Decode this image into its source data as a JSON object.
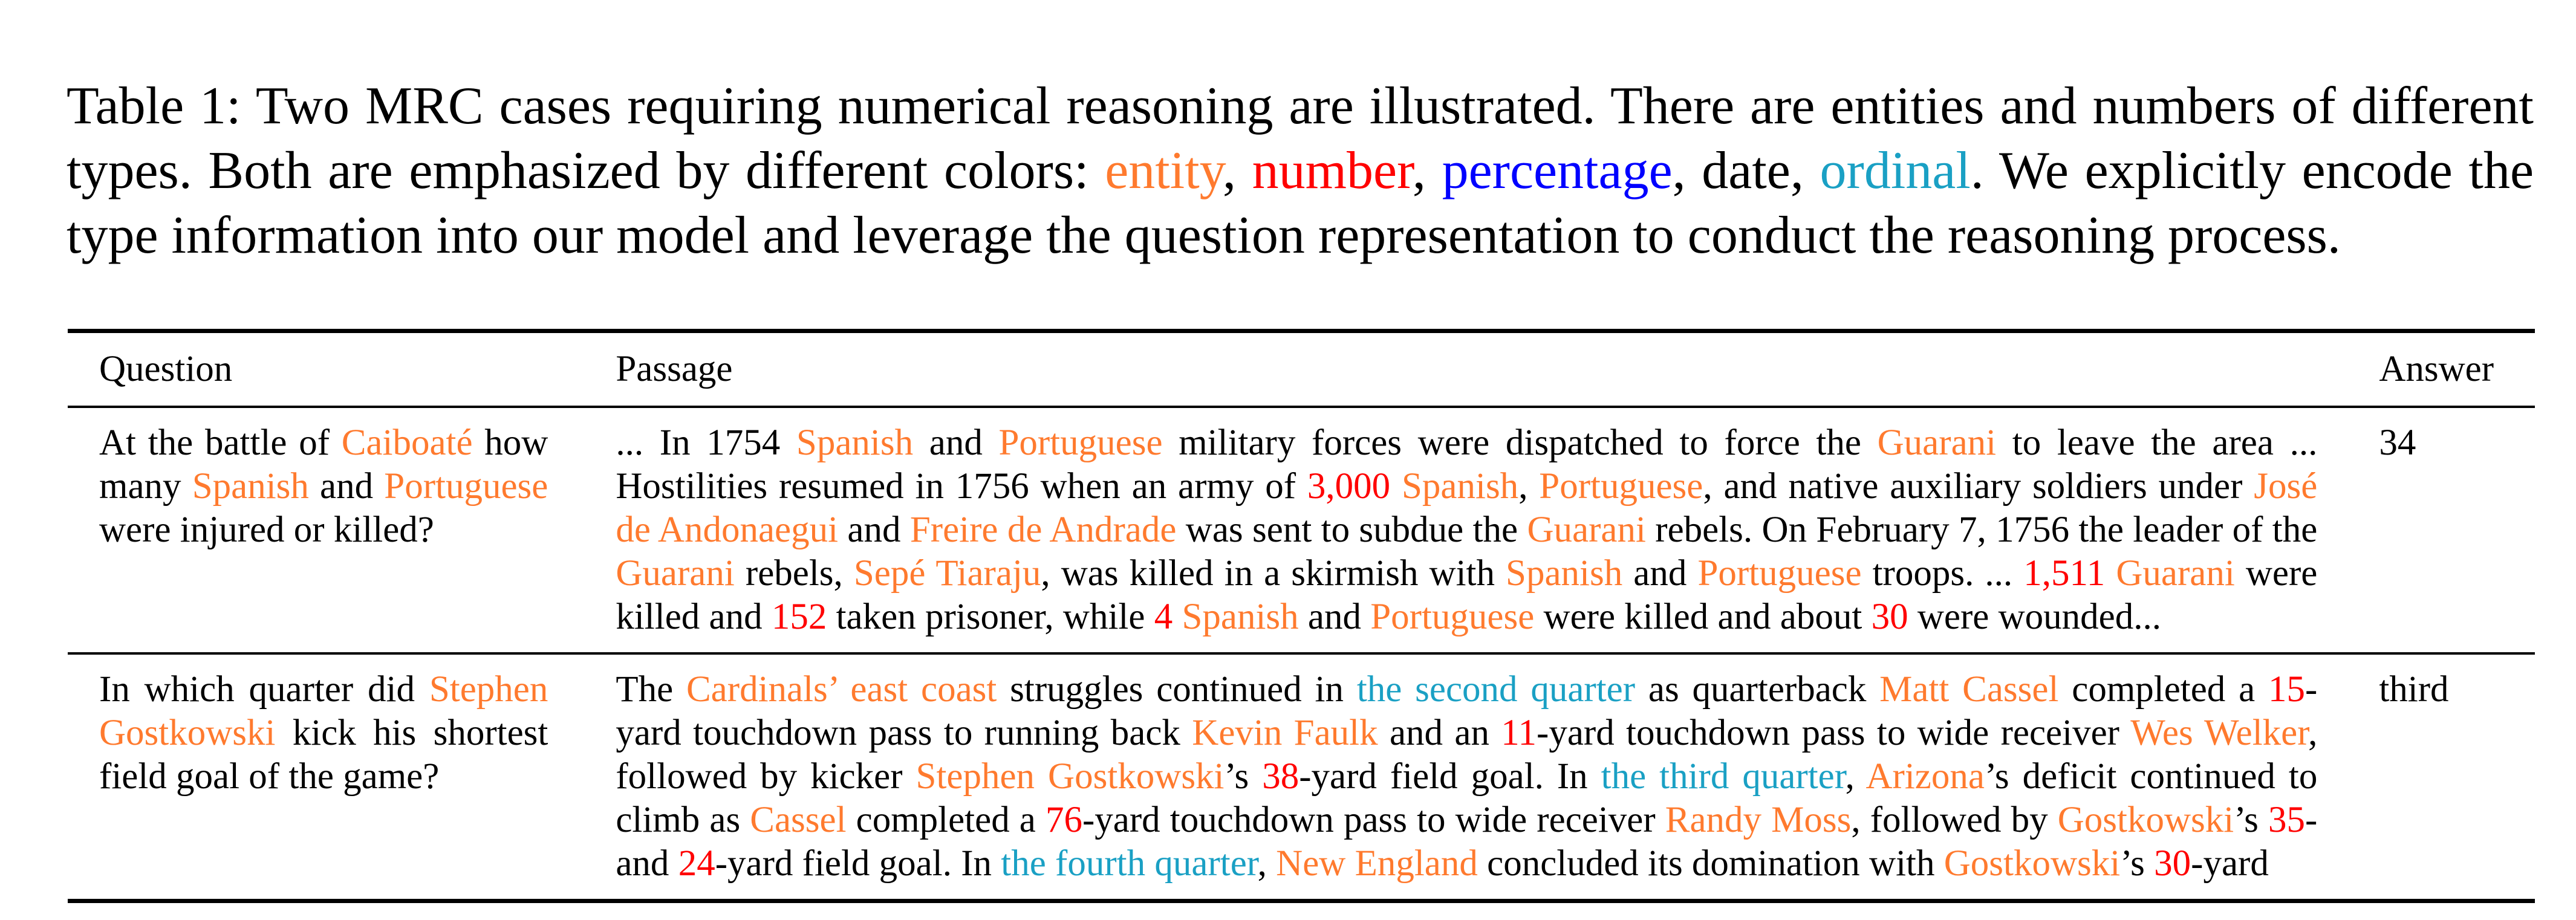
{
  "caption": {
    "prefix": "Table 1: Two MRC cases requiring numerical reasoning are illustrated. There are entities and numbers of different types. Both are emphasized by different colors: ",
    "legend_entity": "entity",
    "sep1": ", ",
    "legend_number": "number",
    "sep2": ", ",
    "legend_percentage": "percentage",
    "sep3": ", date, ",
    "legend_ordinal": "ordinal",
    "suffix": ". We explicitly encode the type information into our model and leverage the question representation to conduct the reasoning process."
  },
  "colors": {
    "entity": "#ff7a2e",
    "number": "#ff0000",
    "percentage": "#0000ff",
    "ordinal": "#1aa0c4"
  },
  "table": {
    "headers": [
      "Question",
      "Passage",
      "Answer"
    ],
    "rows": [
      {
        "question": [
          {
            "t": "At the battle of "
          },
          {
            "t": "Caiboaté",
            "c": "ent"
          },
          {
            "t": " how many "
          },
          {
            "t": "Spanish",
            "c": "ent"
          },
          {
            "t": " and "
          },
          {
            "t": "Portuguese",
            "c": "ent"
          },
          {
            "t": " were injured or killed?"
          }
        ],
        "passage": [
          {
            "t": "... In 1754 "
          },
          {
            "t": "Spanish",
            "c": "ent"
          },
          {
            "t": " and "
          },
          {
            "t": "Portuguese",
            "c": "ent"
          },
          {
            "t": " military forces were dispatched to force the "
          },
          {
            "t": "Guarani",
            "c": "ent"
          },
          {
            "t": " to leave the area ... Hostilities resumed in 1756 when an army of "
          },
          {
            "t": "3,000",
            "c": "num"
          },
          {
            "t": " "
          },
          {
            "t": "Spanish",
            "c": "ent"
          },
          {
            "t": ", "
          },
          {
            "t": "Portuguese",
            "c": "ent"
          },
          {
            "t": ", and native auxiliary soldiers under "
          },
          {
            "t": "José de Andonaegui",
            "c": "ent"
          },
          {
            "t": " and "
          },
          {
            "t": "Freire de Andrade",
            "c": "ent"
          },
          {
            "t": " was sent to subdue the "
          },
          {
            "t": "Guarani",
            "c": "ent"
          },
          {
            "t": " rebels. On February 7, 1756 the leader of the "
          },
          {
            "t": "Guarani",
            "c": "ent"
          },
          {
            "t": " rebels, "
          },
          {
            "t": "Sepé Tiaraju",
            "c": "ent"
          },
          {
            "t": ", was killed in a skirmish with "
          },
          {
            "t": "Spanish",
            "c": "ent"
          },
          {
            "t": " and "
          },
          {
            "t": "Portuguese",
            "c": "ent"
          },
          {
            "t": " troops. ... "
          },
          {
            "t": "1,511",
            "c": "num"
          },
          {
            "t": " "
          },
          {
            "t": "Guarani",
            "c": "ent"
          },
          {
            "t": " were killed and "
          },
          {
            "t": "152",
            "c": "num"
          },
          {
            "t": " taken prisoner, while "
          },
          {
            "t": "4",
            "c": "num"
          },
          {
            "t": " "
          },
          {
            "t": "Spanish",
            "c": "ent"
          },
          {
            "t": " and "
          },
          {
            "t": "Portuguese",
            "c": "ent"
          },
          {
            "t": " were killed and about "
          },
          {
            "t": "30",
            "c": "num"
          },
          {
            "t": " were wounded..."
          }
        ],
        "answer": "34"
      },
      {
        "question": [
          {
            "t": "In which quarter did "
          },
          {
            "t": "Stephen Gostkowski",
            "c": "ent"
          },
          {
            "t": " kick his shortest field goal of the game?"
          }
        ],
        "passage": [
          {
            "t": "The "
          },
          {
            "t": "Cardinals’ east coast",
            "c": "ent"
          },
          {
            "t": " struggles continued in "
          },
          {
            "t": "the second quarter",
            "c": "ord"
          },
          {
            "t": " as quarterback "
          },
          {
            "t": "Matt Cassel",
            "c": "ent"
          },
          {
            "t": " completed a "
          },
          {
            "t": "15",
            "c": "num"
          },
          {
            "t": "-yard touchdown pass to running back "
          },
          {
            "t": "Kevin Faulk",
            "c": "ent"
          },
          {
            "t": " and an "
          },
          {
            "t": "11",
            "c": "num"
          },
          {
            "t": "-yard touchdown pass to wide receiver "
          },
          {
            "t": "Wes Welker",
            "c": "ent"
          },
          {
            "t": ", followed by kicker "
          },
          {
            "t": "Stephen Gostkowski",
            "c": "ent"
          },
          {
            "t": "’s "
          },
          {
            "t": "38",
            "c": "num"
          },
          {
            "t": "-yard field goal. In "
          },
          {
            "t": "the third quarter",
            "c": "ord"
          },
          {
            "t": ", "
          },
          {
            "t": "Arizona",
            "c": "ent"
          },
          {
            "t": "’s deficit continued to climb as "
          },
          {
            "t": "Cassel",
            "c": "ent"
          },
          {
            "t": " completed a "
          },
          {
            "t": "76",
            "c": "num"
          },
          {
            "t": "-yard touchdown pass to wide receiver "
          },
          {
            "t": "Randy Moss",
            "c": "ent"
          },
          {
            "t": ", followed by "
          },
          {
            "t": "Gostkowski",
            "c": "ent"
          },
          {
            "t": "’s "
          },
          {
            "t": "35",
            "c": "num"
          },
          {
            "t": "-and "
          },
          {
            "t": "24",
            "c": "num"
          },
          {
            "t": "-yard field goal. In "
          },
          {
            "t": "the fourth quarter",
            "c": "ord"
          },
          {
            "t": ", "
          },
          {
            "t": "New England",
            "c": "ent"
          },
          {
            "t": " concluded its domination with "
          },
          {
            "t": "Gostkowski",
            "c": "ent"
          },
          {
            "t": "’s "
          },
          {
            "t": "30",
            "c": "num"
          },
          {
            "t": "-yard"
          }
        ],
        "answer": "third"
      }
    ]
  }
}
